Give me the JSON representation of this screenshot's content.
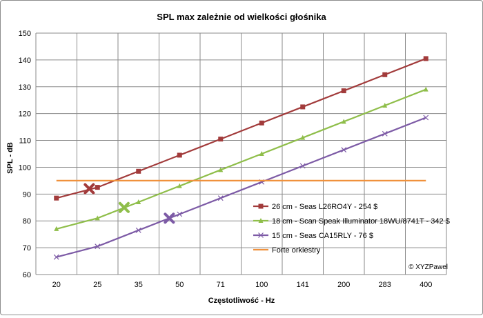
{
  "chart_data": {
    "type": "line",
    "title": "SPL max zależnie od wielkości głośnika",
    "xlabel": "Częstotliwość - Hz",
    "ylabel": "SPL - dB",
    "categories": [
      "20",
      "25",
      "35",
      "50",
      "71",
      "100",
      "141",
      "200",
      "283",
      "400"
    ],
    "ylim": [
      60,
      150
    ],
    "yticks": [
      60,
      70,
      80,
      90,
      100,
      110,
      120,
      130,
      140,
      150
    ],
    "grid": "both",
    "legend_position": "bottom-right",
    "credit": "© XYZPawel",
    "series": [
      {
        "name": "26 cm - Seas L26RO4Y - 254 $",
        "color": "#A23B3B",
        "marker": "square",
        "values": [
          88.5,
          92.5,
          98.5,
          104.5,
          110.5,
          116.5,
          122.5,
          128.5,
          134.5,
          140.5
        ],
        "highlight": {
          "x_index": 0.8,
          "y": 92
        }
      },
      {
        "name": "18 cm - Scan Speak Illuminator 18WU/8741T - 342 $",
        "color": "#8FBE4A",
        "marker": "triangle",
        "values": [
          77,
          81,
          87,
          93,
          99,
          105,
          111,
          117,
          123,
          129
        ],
        "highlight": {
          "x_index": 1.65,
          "y": 85
        }
      },
      {
        "name": "15 cm - Seas CA15RLY - 76 $",
        "color": "#7D5BA6",
        "marker": "x",
        "values": [
          66.5,
          70.5,
          76.5,
          82.5,
          88.5,
          94.5,
          100.5,
          106.5,
          112.5,
          118.5
        ],
        "highlight": {
          "x_index": 2.75,
          "y": 81
        }
      },
      {
        "name": "Forte orkiestry",
        "color": "#F0913C",
        "marker": "none",
        "values": [
          95,
          95,
          95,
          95,
          95,
          95,
          95,
          95,
          95,
          95
        ]
      }
    ]
  }
}
